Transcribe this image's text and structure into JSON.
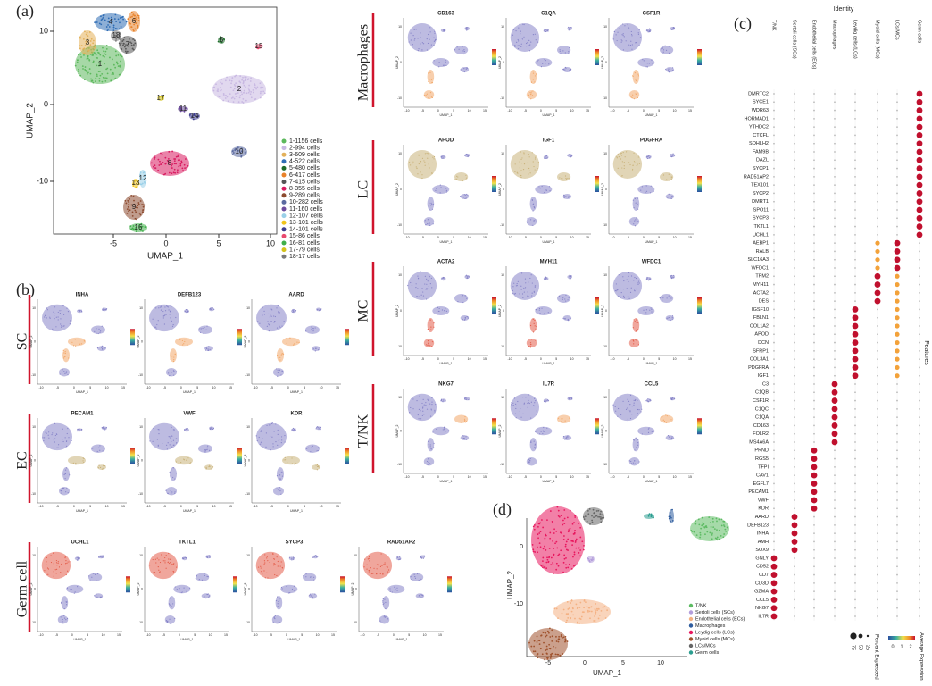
{
  "panel_a": {
    "label": "(a)",
    "x_label": "UMAP_1",
    "y_label": "UMAP_2",
    "xticks": [
      "-5",
      "0",
      "5",
      "10"
    ],
    "yticks": [
      "10",
      "0",
      "-10"
    ],
    "clusters": [
      {
        "label": "1",
        "legend": "1-1156 cells",
        "color": "#5cb85c"
      },
      {
        "label": "2",
        "legend": "2-994 cells",
        "color": "#c8b8e2"
      },
      {
        "label": "3",
        "legend": "3-609 cells",
        "color": "#e3b15a"
      },
      {
        "label": "4",
        "legend": "4-522 cells",
        "color": "#2f6db5"
      },
      {
        "label": "5",
        "legend": "5-480 cells",
        "color": "#1e6b2a"
      },
      {
        "label": "6",
        "legend": "6-417 cells",
        "color": "#e8822a"
      },
      {
        "label": "7",
        "legend": "7-415 cells",
        "color": "#555555"
      },
      {
        "label": "8",
        "legend": "8-355 cells",
        "color": "#d81b60"
      },
      {
        "label": "9",
        "legend": "9-289 cells",
        "color": "#8c4a2f"
      },
      {
        "label": "10",
        "legend": "10-282 cells",
        "color": "#5b6aa0"
      },
      {
        "label": "11",
        "legend": "11-160 cells",
        "color": "#6e4c9e"
      },
      {
        "label": "12",
        "legend": "12-107 cells",
        "color": "#9ad0e8"
      },
      {
        "label": "13",
        "legend": "13-101 cells",
        "color": "#f0c419"
      },
      {
        "label": "14",
        "legend": "14-101 cells",
        "color": "#3d3d8f"
      },
      {
        "label": "15",
        "legend": "15-86 cells",
        "color": "#e84a6f"
      },
      {
        "label": "16",
        "legend": "16-81 cells",
        "color": "#3fae49"
      },
      {
        "label": "17",
        "legend": "17-79 cells",
        "color": "#d4c21a"
      },
      {
        "label": "18",
        "legend": "18-17 cells",
        "color": "#7a7a7a"
      }
    ]
  },
  "panel_b": {
    "label": "(b)",
    "feature_axes": {
      "x_label": "UMAP_1",
      "y_label": "UMAP_2",
      "xticks": [
        "-10",
        "-5",
        "0",
        "5",
        "10",
        "15"
      ],
      "yticks": [
        "10",
        "0",
        "-10"
      ]
    },
    "groups": [
      {
        "name": "SC",
        "genes": [
          "INHA",
          "DEFB123",
          "AARD"
        ]
      },
      {
        "name": "EC",
        "genes": [
          "PECAM1",
          "VWF",
          "KDR"
        ]
      },
      {
        "name": "Germ cell",
        "genes": [
          "UCHL1",
          "TKTL1",
          "SYCP3",
          "RAD51AP2"
        ]
      },
      {
        "name": "Macrophages",
        "genes": [
          "CD163",
          "C1QA",
          "CSF1R"
        ]
      },
      {
        "name": "LC",
        "genes": [
          "APOD",
          "IGF1",
          "PDGFRA"
        ]
      },
      {
        "name": "MC",
        "genes": [
          "ACTA2",
          "MYH11",
          "WFDC1"
        ]
      },
      {
        "name": "T/NK",
        "genes": [
          "NKG7",
          "IL7R",
          "CCL5"
        ]
      }
    ]
  },
  "panel_c": {
    "label": "(c)",
    "title": "Identity",
    "y_label": "Features",
    "color_legend": "Average Expression",
    "color_ticks": [
      "0",
      "1",
      "2"
    ],
    "size_legend": "Percent Expressed",
    "size_ticks": [
      "25",
      "50",
      "75"
    ],
    "columns": [
      {
        "name": "T/NK",
        "features": [
          "GNLY",
          "CD52",
          "CD7",
          "CD3D",
          "GZMA",
          "CCL5",
          "NKG7",
          "IL7R"
        ]
      },
      {
        "name": "Sertoli cells (SCs)",
        "features": [
          "AARD",
          "DEFB123",
          "INHA",
          "AMH",
          "SOX9"
        ]
      },
      {
        "name": "Endothelial cells (ECs)",
        "features": [
          "PRND",
          "RGS5",
          "TFPI",
          "CAV1",
          "EGFL7",
          "PECAM1",
          "VWF",
          "KDR"
        ]
      },
      {
        "name": "Macrophages",
        "features": [
          "C3",
          "C1QB",
          "CSF1R",
          "C1QC",
          "C1QA",
          "CD163",
          "FOLR2",
          "MS4A6A"
        ]
      },
      {
        "name": "Leydig cells (LCs)",
        "features": [
          "IGSF10",
          "FBLN1",
          "COL1A2",
          "APOD",
          "DCN",
          "SFRP1",
          "COL3A1",
          "PDGFRA",
          "IGF1"
        ]
      },
      {
        "name": "Myoid cells (MCs)",
        "features": [
          "TPM2",
          "MYH11",
          "ACTA2",
          "DES"
        ]
      },
      {
        "name": "LCs/MCs",
        "features": [
          "AEBP1",
          "RALB",
          "SLC16A3",
          "WFDC1"
        ]
      },
      {
        "name": "Germ cells",
        "features": [
          "DMRTC2",
          "SYCE1",
          "WDR63",
          "HORMAD1",
          "YTHDC2",
          "CTCFL",
          "SOHLH2",
          "FAM9B",
          "DAZL",
          "SYCP1",
          "RAD51AP2",
          "TEX101",
          "SYCP2",
          "DMRT1",
          "SPO11",
          "SYCP3",
          "TKTL1",
          "UCHL1"
        ]
      }
    ]
  },
  "panel_d": {
    "label": "(d)",
    "x_label": "UMAP_1",
    "y_label": "UMAP_2",
    "xticks": [
      "-5",
      "0",
      "5",
      "10"
    ],
    "yticks": [
      "0",
      "-10"
    ],
    "legend": [
      {
        "name": "T/NK",
        "color": "#5dbb63"
      },
      {
        "name": "Sertoli cells (SCs)",
        "color": "#b39ddb"
      },
      {
        "name": "Endothelial cells (ECs)",
        "color": "#f4b183"
      },
      {
        "name": "Macrophages",
        "color": "#2e5c9e"
      },
      {
        "name": "Leydig cells (LCs)",
        "color": "#e8185f"
      },
      {
        "name": "Myoid cells (MCs)",
        "color": "#a0522d"
      },
      {
        "name": "LCs/MCs",
        "color": "#666666"
      },
      {
        "name": "Germ cells",
        "color": "#2a9d8f"
      }
    ]
  }
}
